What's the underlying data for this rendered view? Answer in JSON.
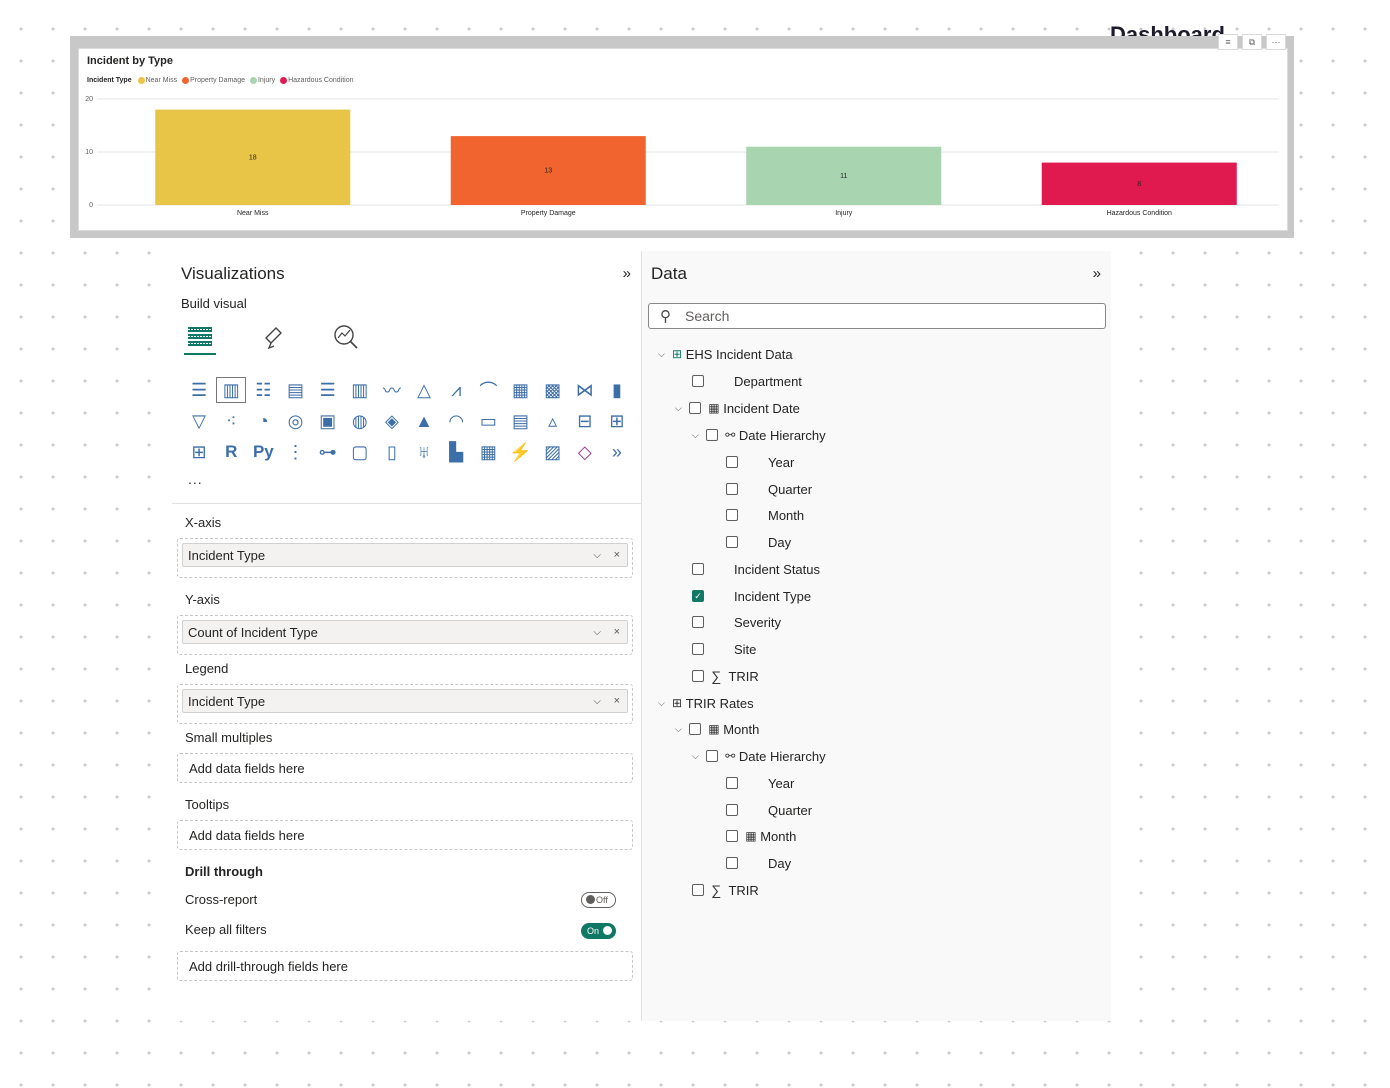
{
  "dashboard_title": "Dashboard",
  "chart_data": {
    "type": "bar",
    "title": "Incident by Type",
    "legend_title": "Incident Type",
    "categories": [
      "Near Miss",
      "Property Damage",
      "Injury",
      "Hazardous Condition"
    ],
    "values": [
      18,
      13,
      11,
      8
    ],
    "colors": [
      "#E8C547",
      "#F2642F",
      "#A8D5B0",
      "#E01A4F"
    ],
    "yticks": [
      "0",
      "10",
      "20"
    ],
    "ylim": [
      0,
      20
    ],
    "grid": true,
    "legend_position": "top-left"
  },
  "visualizations": {
    "title": "Visualizations",
    "build_visual": "Build visual",
    "more": "...",
    "xaxis_label": "X-axis",
    "xaxis_value": "Incident Type",
    "yaxis_label": "Y-axis",
    "yaxis_value": "Count of Incident Type",
    "legend_label": "Legend",
    "legend_value": "Incident Type",
    "small_multiples_label": "Small multiples",
    "small_multiples_placeholder": "Add data fields here",
    "tooltips_label": "Tooltips",
    "tooltips_placeholder": "Add data fields here",
    "drill_through_label": "Drill through",
    "cross_report_label": "Cross-report",
    "cross_report_state": "Off",
    "keep_filters_label": "Keep all filters",
    "keep_filters_state": "On",
    "drill_placeholder": "Add drill-through fields here"
  },
  "data": {
    "title": "Data",
    "search_placeholder": "Search",
    "tables": [
      {
        "name": "EHS Incident Data",
        "fields": {
          "department": "Department",
          "incident_date": "Incident Date",
          "date_hierarchy": "Date Hierarchy",
          "year": "Year",
          "quarter": "Quarter",
          "month": "Month",
          "day": "Day",
          "incident_status": "Incident Status",
          "incident_type": "Incident Type",
          "severity": "Severity",
          "site": "Site",
          "trir": "TRIR"
        }
      },
      {
        "name": "TRIR Rates",
        "fields": {
          "month": "Month",
          "date_hierarchy": "Date Hierarchy",
          "year": "Year",
          "quarter": "Quarter",
          "month2": "Month",
          "day": "Day",
          "trir": "TRIR"
        }
      }
    ]
  }
}
